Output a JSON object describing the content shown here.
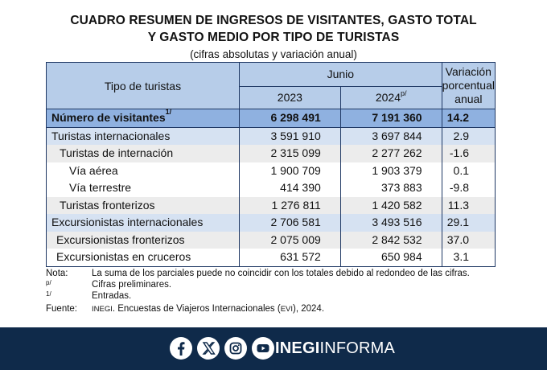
{
  "title_line1": "CUADRO RESUMEN DE INGRESOS DE VISITANTES, GASTO TOTAL",
  "title_line2": "Y GASTO MEDIO POR TIPO DE TURISTAS",
  "subtitle": "(cifras absolutas y variación anual)",
  "header": {
    "col0": "Tipo de turistas",
    "group": "Junio",
    "year1": "2023",
    "year2": "2024",
    "year2_sup": "p/",
    "col3": "Variación porcentual anual"
  },
  "rows": [
    {
      "label": "Número de visitantes",
      "sup": "1/",
      "v2023": "6 298 491",
      "v2024": "7 191 360",
      "var": "14.2"
    },
    {
      "label": "Turistas internacionales",
      "v2023": "3 591 910",
      "v2024": "3 697 844",
      "var": "2.9"
    },
    {
      "label": "Turistas de internación",
      "v2023": "2 315 099",
      "v2024": "2 277 262",
      "var": "-1.6"
    },
    {
      "label": "Vía aérea",
      "v2023": "1 900 709",
      "v2024": "1 903 379",
      "var": "0.1"
    },
    {
      "label": "Vía terrestre",
      "v2023": "414 390",
      "v2024": "373 883",
      "var": "-9.8"
    },
    {
      "label": "Turistas fronterizos",
      "v2023": "1 276 811",
      "v2024": "1 420 582",
      "var": "11.3"
    },
    {
      "label": "Excursionistas internacionales",
      "v2023": "2 706 581",
      "v2024": "3 493 516",
      "var": "29.1"
    },
    {
      "label": "Excursionistas fronterizos",
      "v2023": "2 075 009",
      "v2024": "2 842 532",
      "var": "37.0"
    },
    {
      "label": "Excursionistas en cruceros",
      "v2023": "631 572",
      "v2024": "650 984",
      "var": "3.1"
    }
  ],
  "notes": {
    "n1_key": "Nota:",
    "n1_val": "La suma de los parciales puede no coincidir con los totales debido al redondeo de las cifras.",
    "n2_key": "p/",
    "n2_val": "Cifras preliminares.",
    "n3_key": "1/",
    "n3_val": "Entradas.",
    "n4_key": "Fuente:",
    "n4_org": "INEGI",
    "n4_mid": ". Encuestas de Viajeros Internacionales (",
    "n4_abbr": "EVI",
    "n4_end": "), 2024."
  },
  "footer": {
    "icons": [
      "facebook-icon",
      "x-icon",
      "instagram-icon",
      "youtube-icon"
    ],
    "brand_bold": "INEGI",
    "brand_light": "INFORMA",
    "bg_color": "#0f2a4a"
  },
  "colors": {
    "header_bg": "#b7cde9",
    "total_bg": "#8fb1e0",
    "highlight_bg": "#d6e2f2",
    "stripe_bg": "#ececec"
  }
}
